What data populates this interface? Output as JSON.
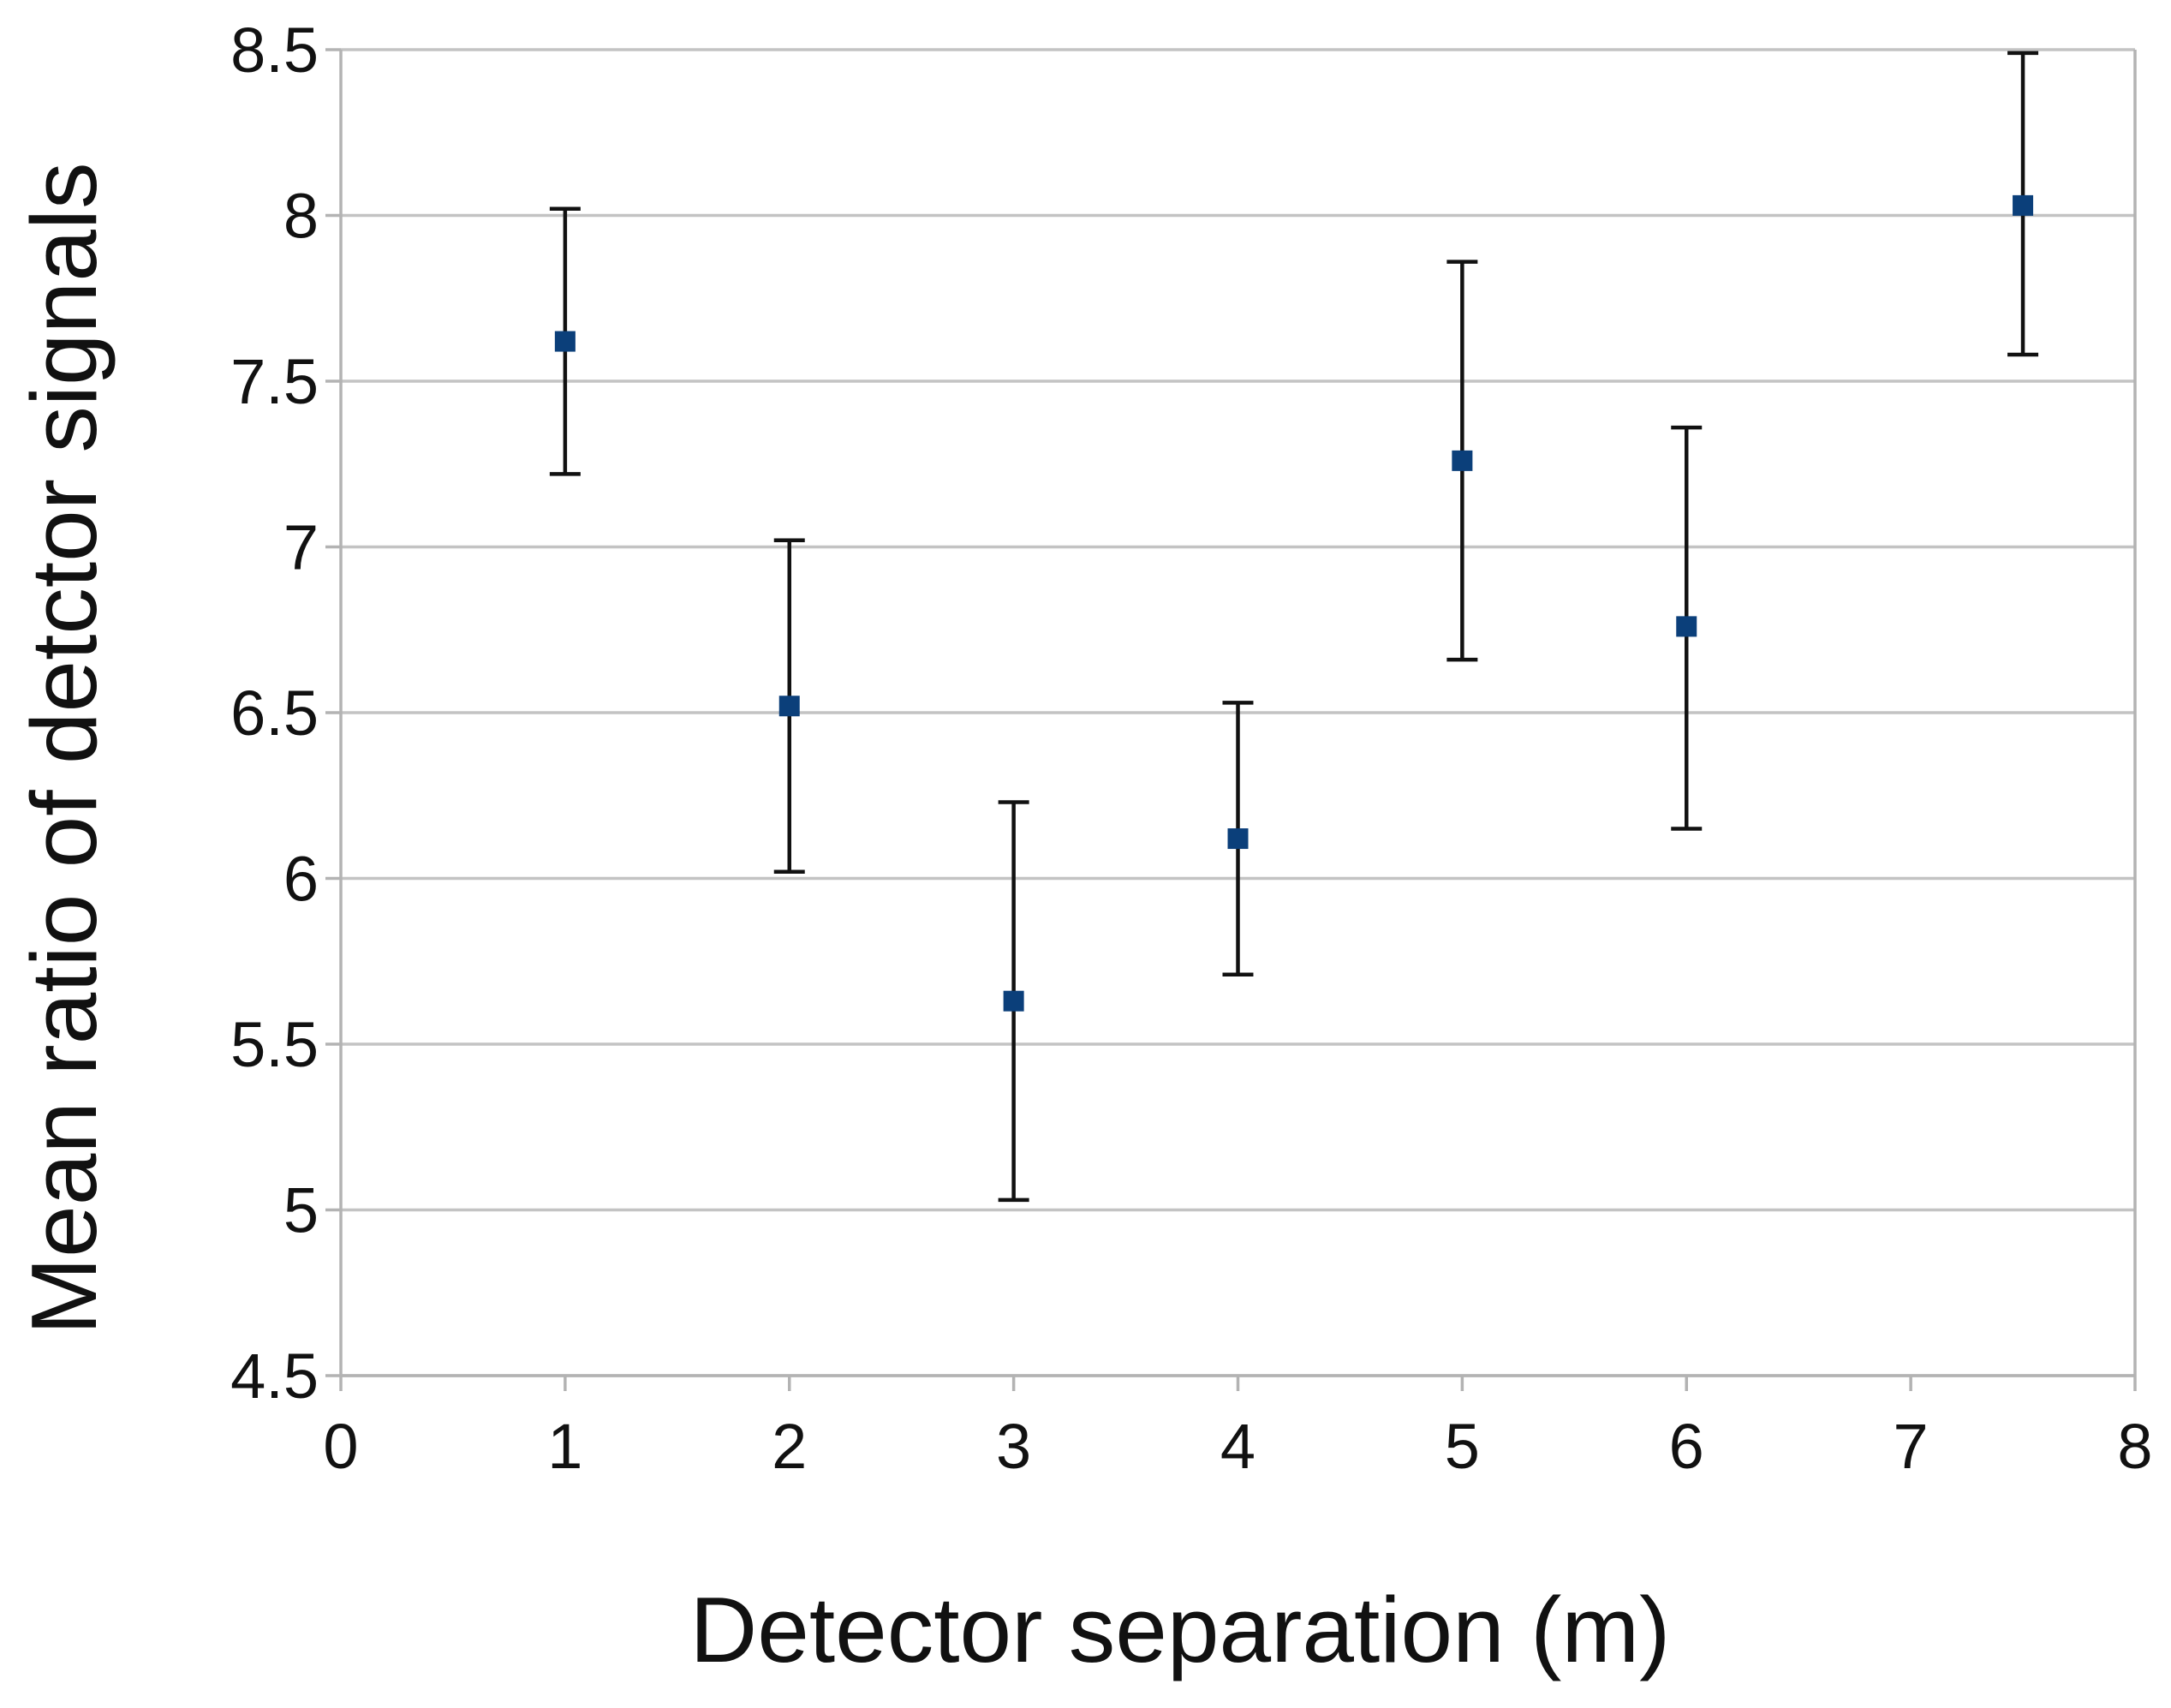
{
  "chart_data": {
    "type": "scatter",
    "title": "",
    "xlabel": "Detector separation (m)",
    "ylabel": "Mean ratio of detctor signals",
    "xlim": [
      0,
      8
    ],
    "ylim": [
      4.5,
      8.5
    ],
    "x_ticks": [
      0,
      1,
      2,
      3,
      4,
      5,
      6,
      7,
      8
    ],
    "y_ticks": [
      4.5,
      5,
      5.5,
      6,
      6.5,
      7,
      7.5,
      8,
      8.5
    ],
    "x_tick_labels": [
      "0",
      "1",
      "2",
      "3",
      "4",
      "5",
      "6",
      "7",
      "8"
    ],
    "y_tick_labels": [
      "4.5",
      "5",
      "5.5",
      "6",
      "6.5",
      "7",
      "7.5",
      "8",
      "8.5"
    ],
    "grid": "horizontal",
    "legend": "none",
    "marker_color": "#0b3f7a",
    "errorbar_color": "#111111",
    "grid_color": "#c3c3c3",
    "series": [
      {
        "x": [
          1,
          2,
          3,
          4,
          5,
          6,
          7.5
        ],
        "y": [
          7.62,
          6.52,
          5.63,
          6.12,
          7.26,
          6.76,
          8.03
        ],
        "y_lower": [
          7.22,
          6.02,
          5.03,
          5.71,
          6.66,
          6.15,
          7.58
        ],
        "y_upper": [
          8.02,
          7.02,
          6.23,
          6.53,
          7.86,
          7.36,
          8.49
        ]
      }
    ]
  }
}
